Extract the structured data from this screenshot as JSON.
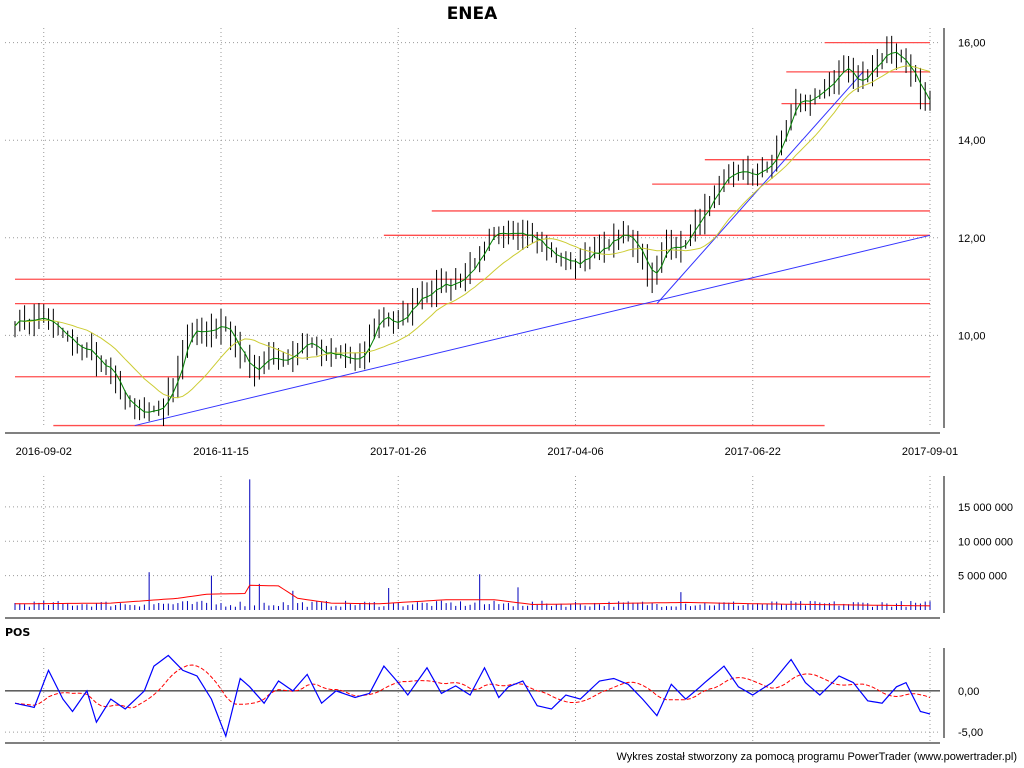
{
  "chart_data": [
    {
      "type": "candlestick",
      "title": "ENEA",
      "xticks": [
        "2016-09-02",
        "2016-11-15",
        "2017-01-26",
        "2017-04-06",
        "2017-06-22",
        "2017-09-01"
      ],
      "yticks": [
        "10,00",
        "12,00",
        "14,00",
        "16,00"
      ],
      "ylim": [
        8.1,
        16.3
      ],
      "grid": true,
      "close_anchors": [
        [
          0,
          10.3
        ],
        [
          6,
          10.35
        ],
        [
          12,
          9.8
        ],
        [
          15,
          9.7
        ],
        [
          20,
          9.2
        ],
        [
          24,
          8.5
        ],
        [
          27,
          8.35
        ],
        [
          30,
          8.45
        ],
        [
          33,
          9.0
        ],
        [
          36,
          10.1
        ],
        [
          40,
          10.0
        ],
        [
          43,
          10.3
        ],
        [
          46,
          9.8
        ],
        [
          49,
          9.3
        ],
        [
          53,
          9.5
        ],
        [
          57,
          9.55
        ],
        [
          61,
          9.9
        ],
        [
          64,
          9.6
        ],
        [
          68,
          9.55
        ],
        [
          72,
          9.45
        ],
        [
          76,
          10.45
        ],
        [
          80,
          10.2
        ],
        [
          84,
          10.8
        ],
        [
          88,
          11.0
        ],
        [
          92,
          11.1
        ],
        [
          96,
          11.4
        ],
        [
          100,
          12.1
        ],
        [
          104,
          12.2
        ],
        [
          108,
          12.0
        ],
        [
          112,
          11.65
        ],
        [
          116,
          11.5
        ],
        [
          120,
          11.6
        ],
        [
          124,
          11.9
        ],
        [
          128,
          12.1
        ],
        [
          131,
          11.6
        ],
        [
          133,
          11.1
        ],
        [
          136,
          11.9
        ],
        [
          139,
          11.8
        ],
        [
          142,
          12.3
        ],
        [
          146,
          12.8
        ],
        [
          149,
          13.35
        ],
        [
          153,
          13.3
        ],
        [
          157,
          13.4
        ],
        [
          160,
          14.0
        ],
        [
          163,
          14.9
        ],
        [
          166,
          14.75
        ],
        [
          170,
          15.1
        ],
        [
          173,
          15.6
        ],
        [
          176,
          15.05
        ],
        [
          179,
          15.55
        ],
        [
          182,
          15.85
        ],
        [
          185,
          15.65
        ],
        [
          188,
          15.2
        ],
        [
          191,
          14.7
        ]
      ],
      "horizontal_levels": [
        {
          "y": 9.15,
          "from": 0,
          "to": 191
        },
        {
          "y": 10.65,
          "from": 0,
          "to": 191
        },
        {
          "y": 11.15,
          "from": 0,
          "to": 191
        },
        {
          "y": 12.05,
          "from": 77,
          "to": 191
        },
        {
          "y": 12.55,
          "from": 87,
          "to": 191
        },
        {
          "y": 13.1,
          "from": 133,
          "to": 191
        },
        {
          "y": 13.6,
          "from": 144,
          "to": 191
        },
        {
          "y": 14.75,
          "from": 160,
          "to": 191
        },
        {
          "y": 15.4,
          "from": 161,
          "to": 191
        },
        {
          "y": 16.0,
          "from": 169,
          "to": 191
        },
        {
          "y": 8.15,
          "from": 8,
          "to": 169
        }
      ],
      "trend_lines": [
        {
          "from": [
            25,
            8.15
          ],
          "to": [
            191,
            12.05
          ]
        },
        {
          "from": [
            134,
            10.65
          ],
          "to": [
            177,
            15.4
          ]
        }
      ]
    },
    {
      "type": "bar",
      "ylabel_ticks": [
        "5 000 000",
        "10 000 000",
        "15 000 000"
      ],
      "ylim": [
        0,
        19500000
      ],
      "typical_volume": 900000,
      "volume_spikes": [
        {
          "i": 28,
          "value": 5500000
        },
        {
          "i": 41,
          "value": 5000000
        },
        {
          "i": 49,
          "value": 19000000
        },
        {
          "i": 51,
          "value": 3800000
        },
        {
          "i": 58,
          "value": 2800000
        },
        {
          "i": 78,
          "value": 3200000
        },
        {
          "i": 97,
          "value": 5200000
        },
        {
          "i": 105,
          "value": 3300000
        },
        {
          "i": 139,
          "value": 2600000
        }
      ],
      "average_line": [
        [
          0,
          900000
        ],
        [
          20,
          1000000
        ],
        [
          34,
          1700000
        ],
        [
          40,
          2300000
        ],
        [
          48,
          2400000
        ],
        [
          49,
          3600000
        ],
        [
          55,
          3500000
        ],
        [
          59,
          1700000
        ],
        [
          66,
          1000000
        ],
        [
          76,
          900000
        ],
        [
          90,
          1500000
        ],
        [
          100,
          1500000
        ],
        [
          108,
          800000
        ],
        [
          140,
          1100000
        ],
        [
          155,
          900000
        ],
        [
          191,
          600000
        ]
      ]
    },
    {
      "type": "line",
      "title": "POS",
      "yticks": [
        "-5,00",
        "0,00"
      ],
      "ylim": [
        -6.2,
        5.2
      ],
      "series_anchors": [
        [
          0,
          -1.5
        ],
        [
          4,
          -2.0
        ],
        [
          7,
          2.5
        ],
        [
          10,
          -1.0
        ],
        [
          12,
          -2.5
        ],
        [
          15,
          0.0
        ],
        [
          17,
          -3.8
        ],
        [
          20,
          -1.0
        ],
        [
          23,
          -2.2
        ],
        [
          27,
          0.0
        ],
        [
          29,
          3.0
        ],
        [
          32,
          4.3
        ],
        [
          35,
          2.5
        ],
        [
          38,
          1.8
        ],
        [
          41,
          -1.0
        ],
        [
          44,
          -5.5
        ],
        [
          47,
          1.5
        ],
        [
          49,
          0.5
        ],
        [
          52,
          -1.5
        ],
        [
          55,
          1.2
        ],
        [
          58,
          0.0
        ],
        [
          61,
          2.0
        ],
        [
          64,
          -1.5
        ],
        [
          67,
          0.0
        ],
        [
          71,
          -0.8
        ],
        [
          74,
          -0.3
        ],
        [
          77,
          3.0
        ],
        [
          80,
          1.0
        ],
        [
          82,
          -0.5
        ],
        [
          86,
          2.8
        ],
        [
          89,
          -0.3
        ],
        [
          92,
          0.6
        ],
        [
          95,
          -0.5
        ],
        [
          98,
          2.8
        ],
        [
          101,
          -0.8
        ],
        [
          103,
          0.5
        ],
        [
          106,
          1.2
        ],
        [
          109,
          -1.8
        ],
        [
          112,
          -2.2
        ],
        [
          115,
          -0.5
        ],
        [
          118,
          -1.0
        ],
        [
          122,
          1.2
        ],
        [
          125,
          1.5
        ],
        [
          128,
          0.8
        ],
        [
          131,
          -1.0
        ],
        [
          134,
          -3.0
        ],
        [
          137,
          0.8
        ],
        [
          140,
          -1.0
        ],
        [
          142,
          0.0
        ],
        [
          145,
          1.5
        ],
        [
          148,
          3.0
        ],
        [
          151,
          0.5
        ],
        [
          154,
          -0.5
        ],
        [
          158,
          1.0
        ],
        [
          162,
          3.8
        ],
        [
          165,
          1.0
        ],
        [
          168,
          -0.5
        ],
        [
          172,
          1.8
        ],
        [
          175,
          1.0
        ],
        [
          178,
          -1.2
        ],
        [
          181,
          -1.5
        ],
        [
          184,
          0.5
        ],
        [
          186,
          1.0
        ],
        [
          189,
          -2.5
        ],
        [
          191,
          -2.8
        ]
      ],
      "signal_window": 9,
      "zero_line": true
    }
  ],
  "footer": {
    "credit": "Wykres został stworzony za pomocą programu PowerTrader (www.powertrader.pl)"
  },
  "colors": {
    "price_bars": "#000000",
    "close_line": "#008000",
    "moving_average": "#cccc33",
    "levels": "#ff4d4d",
    "trend": "#3333ff",
    "volume_bars": "#0000bb",
    "volume_average": "#ff0000",
    "pos_line": "#0000ff",
    "pos_signal": "#ff0000"
  }
}
